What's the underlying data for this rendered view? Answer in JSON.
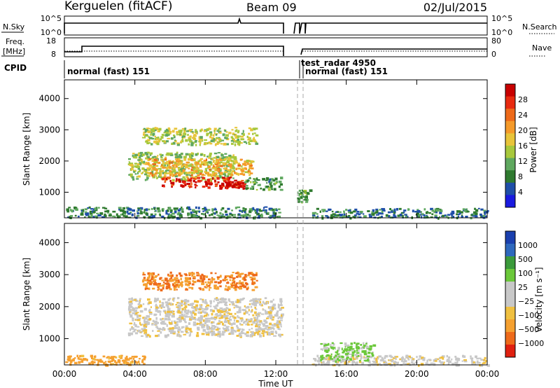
{
  "header": {
    "station": "Kerguelen (fitACF)",
    "beam": "Beam 09",
    "date": "02/Jul/2015"
  },
  "status_panels": {
    "nsky_label": "N.Sky",
    "nsky_ticks": [
      "10^5",
      "10^0"
    ],
    "nsearch_label": "N.Search",
    "nsearch_ticks": [
      "10^5",
      "10^0"
    ],
    "freq_label": "Freq.",
    "freq_unit": "[MHz]",
    "freq_ticks": [
      "18",
      "8"
    ],
    "nave_label": "Nave",
    "nave_ticks": [
      "80",
      "0"
    ],
    "cpid_label": "CPID",
    "cpid_segments": [
      "normal (fast) 151",
      "test_radar 4950",
      "normal (fast) 151"
    ]
  },
  "colors": {
    "power_scale": [
      "#1a1ae0",
      "#1f4fa8",
      "#2f7a2f",
      "#5fa85f",
      "#a8c83c",
      "#e8c43a",
      "#f59a2a",
      "#ee6a1a",
      "#e82a10",
      "#c80000"
    ],
    "velocity_scale": [
      "#1a3fae",
      "#2e68bd",
      "#3b9a3b",
      "#6bc83a",
      "#c8c8c8",
      "#c8c8c8",
      "#f0c040",
      "#f5a030",
      "#ee6a1a",
      "#e02010"
    ]
  },
  "chart_data": [
    {
      "type": "heatmap",
      "panel": "power",
      "ylabel": "Slant Range [km]",
      "ylim": [
        180,
        4600
      ],
      "yticks": [
        1000,
        2000,
        3000,
        4000
      ],
      "xlim": [
        0,
        24
      ],
      "xticks": [
        "00:00",
        "04:00",
        "08:00",
        "12:00",
        "16:00",
        "20:00",
        "00:00"
      ],
      "colorbar": {
        "label": "Power [dB]",
        "ticks": [
          "4",
          "8",
          "12",
          "16",
          "20",
          "24",
          "28"
        ],
        "range": [
          0,
          30
        ]
      },
      "regions": [
        {
          "t0": 0.0,
          "t1": 12.3,
          "r0": 200,
          "r1": 550,
          "value": 8
        },
        {
          "t0": 3.6,
          "t1": 9.6,
          "r0": 1400,
          "r1": 2300,
          "value": 13
        },
        {
          "t0": 4.6,
          "t1": 10.6,
          "r0": 1550,
          "r1": 2100,
          "value": 18
        },
        {
          "t0": 5.5,
          "t1": 10.2,
          "r0": 1180,
          "r1": 1500,
          "value": 26
        },
        {
          "t0": 8.7,
          "t1": 10.2,
          "r0": 1150,
          "r1": 1350,
          "value": 29
        },
        {
          "t0": 4.4,
          "t1": 10.9,
          "r0": 2550,
          "r1": 3100,
          "value": 14
        },
        {
          "t0": 10.2,
          "t1": 12.3,
          "r0": 1100,
          "r1": 1500,
          "value": 9
        },
        {
          "t0": 13.2,
          "t1": 13.9,
          "r0": 700,
          "r1": 1100,
          "value": 10
        },
        {
          "t0": 14.0,
          "t1": 24.0,
          "r0": 200,
          "r1": 500,
          "value": 7
        }
      ],
      "xlabel": ""
    },
    {
      "type": "heatmap",
      "panel": "velocity",
      "ylabel": "Slant Range [km]",
      "ylim": [
        180,
        4600
      ],
      "yticks": [
        1000,
        2000,
        3000,
        4000
      ],
      "xlim": [
        0,
        24
      ],
      "xticks": [
        "00:00",
        "04:00",
        "08:00",
        "12:00",
        "16:00",
        "20:00",
        "00:00"
      ],
      "xlabel": "Time UT",
      "colorbar": {
        "label": "Velocity [m s⁻¹]",
        "ticks": [
          "1000",
          "500",
          "100",
          "25",
          "−25",
          "−100",
          "−500",
          "−1000"
        ]
      },
      "regions": [
        {
          "t0": 0.0,
          "t1": 4.5,
          "r0": 200,
          "r1": 500,
          "value": -150
        },
        {
          "t0": 3.6,
          "t1": 12.3,
          "r0": 1100,
          "r1": 2300,
          "value": 0
        },
        {
          "t0": 4.4,
          "t1": 10.9,
          "r0": 2550,
          "r1": 3100,
          "value": -300
        },
        {
          "t0": 14.0,
          "t1": 24.0,
          "r0": 200,
          "r1": 500,
          "value": 0
        },
        {
          "t0": 14.5,
          "t1": 17.5,
          "r0": 300,
          "r1": 900,
          "value": 80
        }
      ]
    }
  ]
}
